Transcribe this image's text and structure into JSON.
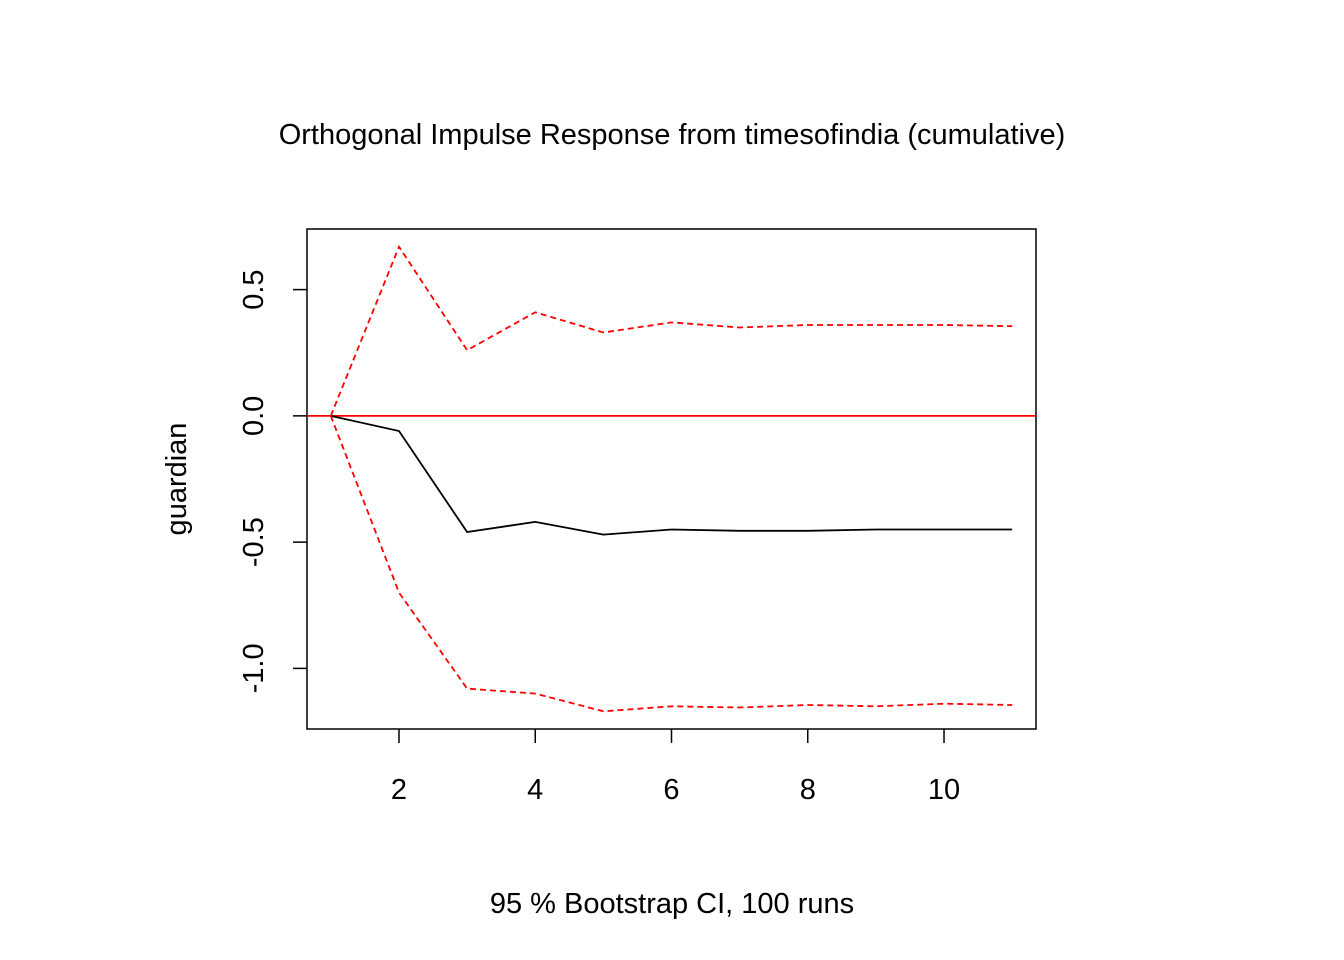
{
  "chart_data": {
    "type": "line",
    "title": "Orthogonal Impulse Response from timesofindia (cumulative)",
    "xlabel": "95 % Bootstrap CI,  100 runs",
    "ylabel": "guardian",
    "xlim": [
      0.65,
      11.35
    ],
    "ylim": [
      -1.24,
      0.74
    ],
    "x_ticks": [
      2,
      4,
      6,
      8,
      10
    ],
    "y_ticks": [
      -1.0,
      -0.5,
      0.0,
      0.5
    ],
    "x_tick_labels": [
      "2",
      "4",
      "6",
      "8",
      "10"
    ],
    "y_tick_labels": [
      "-1.0",
      "-0.5",
      "0.0",
      "0.5"
    ],
    "grid": false,
    "x": [
      1,
      2,
      3,
      4,
      5,
      6,
      7,
      8,
      9,
      10,
      11
    ],
    "series": [
      {
        "role": "response",
        "color": "#000000",
        "dash": "solid",
        "values": [
          0.0,
          -0.06,
          -0.46,
          -0.42,
          -0.47,
          -0.45,
          -0.455,
          -0.455,
          -0.45,
          -0.45,
          -0.45
        ]
      },
      {
        "role": "upper-ci",
        "color": "#ff0000",
        "dash": "dashed",
        "values": [
          0.0,
          0.67,
          0.26,
          0.41,
          0.33,
          0.37,
          0.35,
          0.36,
          0.36,
          0.36,
          0.355
        ]
      },
      {
        "role": "lower-ci",
        "color": "#ff0000",
        "dash": "dashed",
        "values": [
          0.0,
          -0.7,
          -1.08,
          -1.1,
          -1.17,
          -1.15,
          -1.155,
          -1.145,
          -1.15,
          -1.14,
          -1.145
        ]
      }
    ],
    "reference_line": {
      "y": 0,
      "color": "#ff0000"
    }
  }
}
